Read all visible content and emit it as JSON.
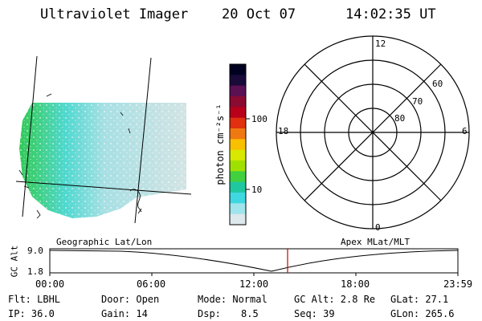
{
  "header": {
    "instrument": "Ultraviolet Imager",
    "date": "20 Oct 07",
    "time": "14:02:35 UT"
  },
  "colorbar": {
    "unit_label": "photon cm⁻²s⁻¹",
    "ticks": [
      "100",
      "10"
    ],
    "colors": [
      "#000020",
      "#1a0a3a",
      "#5a1052",
      "#8a0a32",
      "#b8001a",
      "#e03010",
      "#f07810",
      "#f8c000",
      "#d8e800",
      "#a0e000",
      "#40d040",
      "#20c8a0",
      "#40d8e0",
      "#a0e4ec",
      "#dce8ec"
    ]
  },
  "polar_plot": {
    "mlt_labels": [
      "12",
      "18",
      "6",
      "0"
    ],
    "lat_labels": [
      "60",
      "70",
      "80"
    ]
  },
  "map": {
    "label": "Geographic Lat/Lon",
    "colors": {
      "dayside": "#30c850",
      "mid": "#50d8d0",
      "night": "#d8e4e4"
    }
  },
  "timeline": {
    "ylabel": "GC Alt",
    "ytick_top": "9.0",
    "ytick_bottom": "1.8",
    "right_label": "Apex MLat/MLT",
    "xticks": [
      "00:00",
      "06:00",
      "12:00",
      "18:00",
      "23:59"
    ],
    "marker_color": "#cc0000"
  },
  "info": {
    "filter": "Flt: LBHL",
    "ip": "IP: 36.0",
    "door": "Door: Open",
    "gain": "Gain: 14",
    "mode": "Mode: Normal",
    "dsp_label": "Dsp:",
    "dsp_value": "8.5",
    "gc_alt": "GC Alt: 2.8 Re",
    "seq": "Seq: 39",
    "glat": "GLat: 27.1",
    "glon": "GLon: 265.6"
  }
}
